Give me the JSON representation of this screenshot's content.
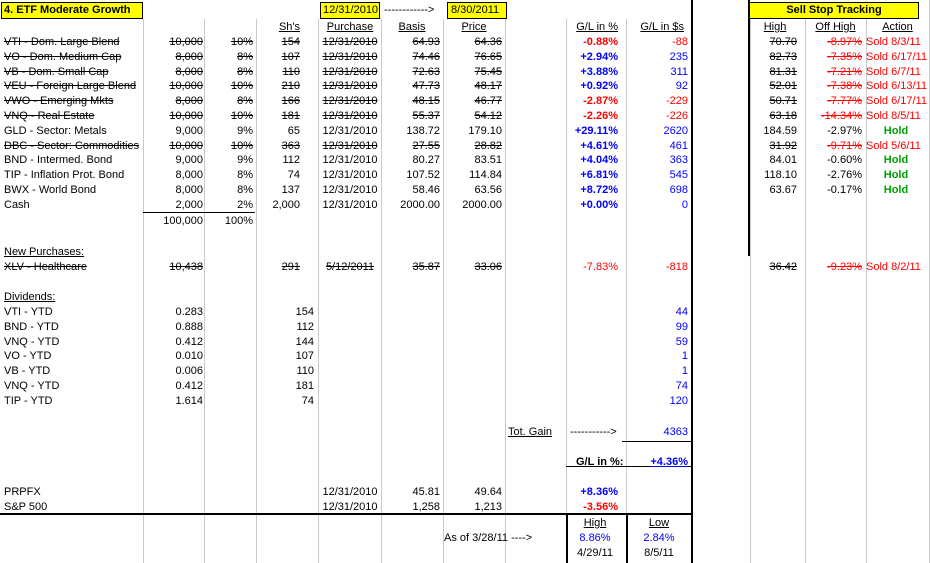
{
  "header": {
    "title": "4. ETF Moderate Growth",
    "date_start": "12/31/2010",
    "arrow": "------------>",
    "date_end": "8/30/2011",
    "sell_stop": "Sell Stop Tracking"
  },
  "columns": {
    "shares": "Sh's",
    "purchase": "Purchase",
    "basis": "Basis",
    "price": "Price",
    "gl_pct": "G/L in %",
    "gl_usd": "G/L in $s",
    "high": "High",
    "off_high": "Off High",
    "action": "Action"
  },
  "holdings": [
    {
      "name": "VTI - Dom. Large Blend",
      "amount": "10,000",
      "alloc": "10%",
      "shares": "154",
      "purchase": "12/31/2010",
      "basis": "64.93",
      "price": "64.36",
      "gl_pct": "-0.88%",
      "gl_usd": "-88",
      "high": "70.70",
      "off_high": "-8.97%",
      "action": "Sold 8/3/11"
    },
    {
      "name": "VO - Dom. Medium Cap",
      "amount": "8,000",
      "alloc": "8%",
      "shares": "107",
      "purchase": "12/31/2010",
      "basis": "74.46",
      "price": "76.65",
      "gl_pct": "+2.94%",
      "gl_usd": "235",
      "high": "82.73",
      "off_high": "-7.35%",
      "action": "Sold 6/17/11"
    },
    {
      "name": "VB - Dom. Small Cap",
      "amount": "8,000",
      "alloc": "8%",
      "shares": "110",
      "purchase": "12/31/2010",
      "basis": "72.63",
      "price": "75.45",
      "gl_pct": "+3.88%",
      "gl_usd": "311",
      "high": "81.31",
      "off_high": "-7.21%",
      "action": "Sold 6/7/11"
    },
    {
      "name": "VEU - Foreign Large Blend",
      "amount": "10,000",
      "alloc": "10%",
      "shares": "210",
      "purchase": "12/31/2010",
      "basis": "47.73",
      "price": "48.17",
      "gl_pct": "+0.92%",
      "gl_usd": "92",
      "high": "52.01",
      "off_high": "-7.38%",
      "action": "Sold 6/13/11"
    },
    {
      "name": "VWO - Emerging Mkts",
      "amount": "8,000",
      "alloc": "8%",
      "shares": "166",
      "purchase": "12/31/2010",
      "basis": "48.15",
      "price": "46.77",
      "gl_pct": "-2.87%",
      "gl_usd": "-229",
      "high": "50.71",
      "off_high": "-7.77%",
      "action": "Sold 6/17/11"
    },
    {
      "name": "VNQ - Real Estate",
      "amount": "10,000",
      "alloc": "10%",
      "shares": "181",
      "purchase": "12/31/2010",
      "basis": "55.37",
      "price": "54.12",
      "gl_pct": "-2.26%",
      "gl_usd": "-226",
      "high": "63.18",
      "off_high": "-14.34%",
      "action": "Sold 8/5/11"
    },
    {
      "name": "GLD - Sector: Metals",
      "amount": "9,000",
      "alloc": "9%",
      "shares": "65",
      "purchase": "12/31/2010",
      "basis": "138.72",
      "price": "179.10",
      "gl_pct": "+29.11%",
      "gl_usd": "2620",
      "high": "184.59",
      "off_high": "-2.97%",
      "action": "Hold"
    },
    {
      "name": "DBC - Sector: Commodities",
      "amount": "10,000",
      "alloc": "10%",
      "shares": "363",
      "purchase": "12/31/2010",
      "basis": "27.55",
      "price": "28.82",
      "gl_pct": "+4.61%",
      "gl_usd": "461",
      "high": "31.92",
      "off_high": "-9.71%",
      "action": "Sold 5/6/11"
    },
    {
      "name": "BND - Intermed. Bond",
      "amount": "9,000",
      "alloc": "9%",
      "shares": "112",
      "purchase": "12/31/2010",
      "basis": "80.27",
      "price": "83.51",
      "gl_pct": "+4.04%",
      "gl_usd": "363",
      "high": "84.01",
      "off_high": "-0.60%",
      "action": "Hold"
    },
    {
      "name": "TIP - Inflation Prot. Bond",
      "amount": "8,000",
      "alloc": "8%",
      "shares": "74",
      "purchase": "12/31/2010",
      "basis": "107.52",
      "price": "114.84",
      "gl_pct": "+6.81%",
      "gl_usd": "545",
      "high": "118.10",
      "off_high": "-2.76%",
      "action": "Hold"
    },
    {
      "name": "BWX - World Bond",
      "amount": "8,000",
      "alloc": "8%",
      "shares": "137",
      "purchase": "12/31/2010",
      "basis": "58.46",
      "price": "63.56",
      "gl_pct": "+8.72%",
      "gl_usd": "698",
      "high": "63.67",
      "off_high": "-0.17%",
      "action": "Hold"
    },
    {
      "name": "Cash",
      "amount": "2,000",
      "alloc": "2%",
      "shares": "2,000",
      "purchase": "12/31/2010",
      "basis": "2000.00",
      "price": "2000.00",
      "gl_pct": "+0.00%",
      "gl_usd": "0",
      "high": "",
      "off_high": "",
      "action": ""
    }
  ],
  "totals": {
    "amount": "100,000",
    "alloc": "100%"
  },
  "new_purchases": {
    "label": "New Purchases:",
    "rows": [
      {
        "name": "XLV - Healthcare",
        "amount": "10,438",
        "shares": "291",
        "purchase": "5/12/2011",
        "basis": "35.87",
        "price": "33.06",
        "gl_pct": "-7.83%",
        "gl_usd": "-818",
        "high": "36.42",
        "off_high": "-9.23%",
        "action": "Sold 8/2/11"
      }
    ]
  },
  "dividends": {
    "label": "Dividends:",
    "rows": [
      {
        "name": "VTI - YTD",
        "per": "0.283",
        "shares": "154",
        "usd": "44"
      },
      {
        "name": "BND - YTD",
        "per": "0.888",
        "shares": "112",
        "usd": "99"
      },
      {
        "name": "VNQ - YTD",
        "per": "0.412",
        "shares": "144",
        "usd": "59"
      },
      {
        "name": "VO - YTD",
        "per": "0.010",
        "shares": "107",
        "usd": "1"
      },
      {
        "name": "VB - YTD",
        "per": "0.006",
        "shares": "110",
        "usd": "1"
      },
      {
        "name": "VNQ - YTD",
        "per": "0.412",
        "shares": "181",
        "usd": "74"
      },
      {
        "name": "TIP - YTD",
        "per": "1.614",
        "shares": "74",
        "usd": "120"
      }
    ]
  },
  "summary": {
    "tot_gain_label": "Tot. Gain",
    "tot_gain_arrow": "----------->",
    "tot_gain_value": "4363",
    "gl_pct_label": "G/L in %:",
    "gl_pct_value": "+4.36%"
  },
  "benchmarks": [
    {
      "name": "PRPFX",
      "date": "12/31/2010",
      "basis": "45.81",
      "price": "49.64",
      "gl_pct": "+8.36%"
    },
    {
      "name": "S&P 500",
      "date": "12/31/2010",
      "basis": "1,258",
      "price": "1,213",
      "gl_pct": "-3.56%"
    }
  ],
  "high_low": {
    "high_label": "High",
    "low_label": "Low",
    "as_of": "As of 3/28/11 ---->",
    "high_pct": "8.86%",
    "low_pct": "2.84%",
    "high_date": "4/29/11",
    "low_date": "8/5/11"
  },
  "colors": {
    "highlight": "#ffff00",
    "negative": "#ff0000",
    "positive": "#0000ff",
    "hold": "#00a000"
  }
}
